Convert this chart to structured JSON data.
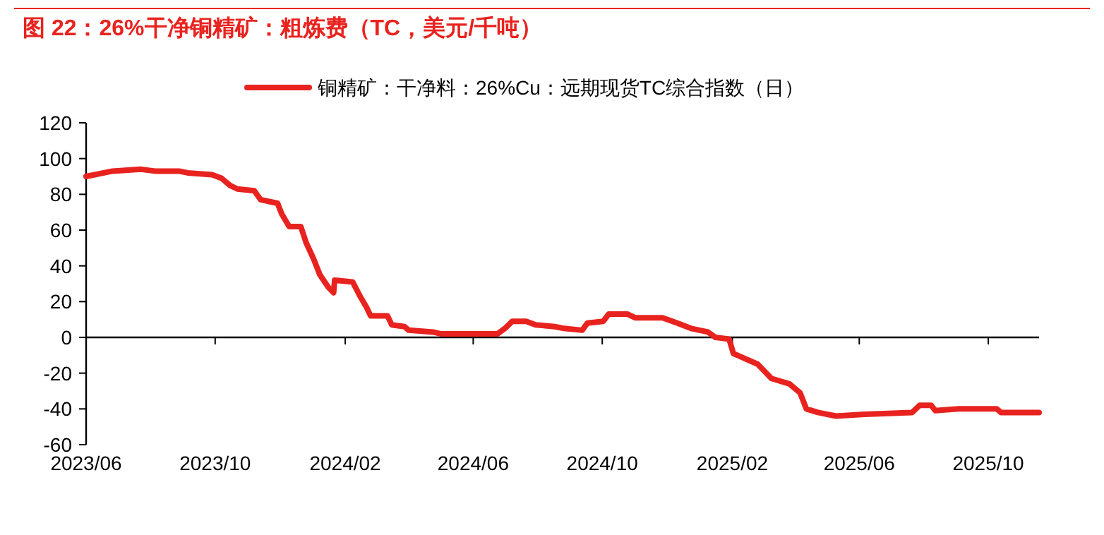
{
  "chart_data": {
    "type": "line",
    "title": "图 22：26%干净铜精矿：粗炼费（TC，美元/千吨）",
    "x": [
      "2023-06-01",
      "2023-06-26",
      "2023-07-23",
      "2023-08-05",
      "2023-08-19",
      "2023-08-28",
      "2023-09-05",
      "2023-09-28",
      "2023-10-07",
      "2023-10-15",
      "2023-10-22",
      "2023-11-07",
      "2023-11-13",
      "2023-11-29",
      "2023-12-03",
      "2023-12-10",
      "2023-12-21",
      "2023-12-26",
      "2024-01-02",
      "2024-01-08",
      "2024-01-16",
      "2024-01-21",
      "2024-01-22",
      "2024-02-08",
      "2024-02-15",
      "2024-02-21",
      "2024-02-25",
      "2024-03-12",
      "2024-03-16",
      "2024-03-28",
      "2024-04-01",
      "2024-04-24",
      "2024-05-01",
      "2024-06-24",
      "2024-07-01",
      "2024-07-08",
      "2024-07-21",
      "2024-07-30",
      "2024-08-17",
      "2024-08-26",
      "2024-09-12",
      "2024-09-17",
      "2024-10-02",
      "2024-10-07",
      "2024-10-25",
      "2024-11-01",
      "2024-11-27",
      "2024-12-11",
      "2024-12-24",
      "2025-01-09",
      "2025-01-16",
      "2025-01-29",
      "2025-02-02",
      "2025-02-25",
      "2025-03-10",
      "2025-03-27",
      "2025-04-06",
      "2025-04-12",
      "2025-04-23",
      "2025-05-10",
      "2025-06-06",
      "2025-07-21",
      "2025-07-28",
      "2025-08-08",
      "2025-08-12",
      "2025-09-03",
      "2025-10-09",
      "2025-10-13",
      "2025-11-18"
    ],
    "series": [
      {
        "name": "铜精矿：干净料：26%Cu：远期现货TC综合指数（日）",
        "color": "#e8231f",
        "values": [
          90,
          93,
          94,
          93,
          93,
          93,
          92,
          91,
          89,
          85,
          83,
          82,
          77,
          75,
          69,
          62,
          62,
          53,
          44,
          35,
          28,
          25,
          32,
          31,
          23,
          17,
          12,
          12,
          7,
          6,
          4,
          3,
          2,
          2,
          5,
          9,
          9,
          7,
          6,
          5,
          4,
          8,
          9,
          13,
          13,
          11,
          11,
          8,
          5,
          3,
          0,
          -1,
          -9,
          -15,
          -23,
          -26,
          -31,
          -40,
          -42,
          -44,
          -43,
          -42,
          -38,
          -38,
          -41,
          -40,
          -40,
          -42,
          -42
        ]
      }
    ],
    "xlim": [
      "2023-06-01",
      "2025-11-18"
    ],
    "xticks": [
      {
        "value": "2023-06-01",
        "label": "2023/06"
      },
      {
        "value": "2023-10-01",
        "label": "2023/10"
      },
      {
        "value": "2024-02-01",
        "label": "2024/02"
      },
      {
        "value": "2024-06-01",
        "label": "2024/06"
      },
      {
        "value": "2024-10-01",
        "label": "2024/10"
      },
      {
        "value": "2025-02-01",
        "label": "2025/02"
      },
      {
        "value": "2025-06-01",
        "label": "2025/06"
      },
      {
        "value": "2025-10-01",
        "label": "2025/10"
      }
    ],
    "ylim": [
      -60,
      120
    ],
    "yticks": [
      -60,
      -40,
      -20,
      0,
      20,
      40,
      60,
      80,
      100,
      120
    ],
    "legend": "top",
    "marker": "none",
    "line_style": "solid"
  }
}
